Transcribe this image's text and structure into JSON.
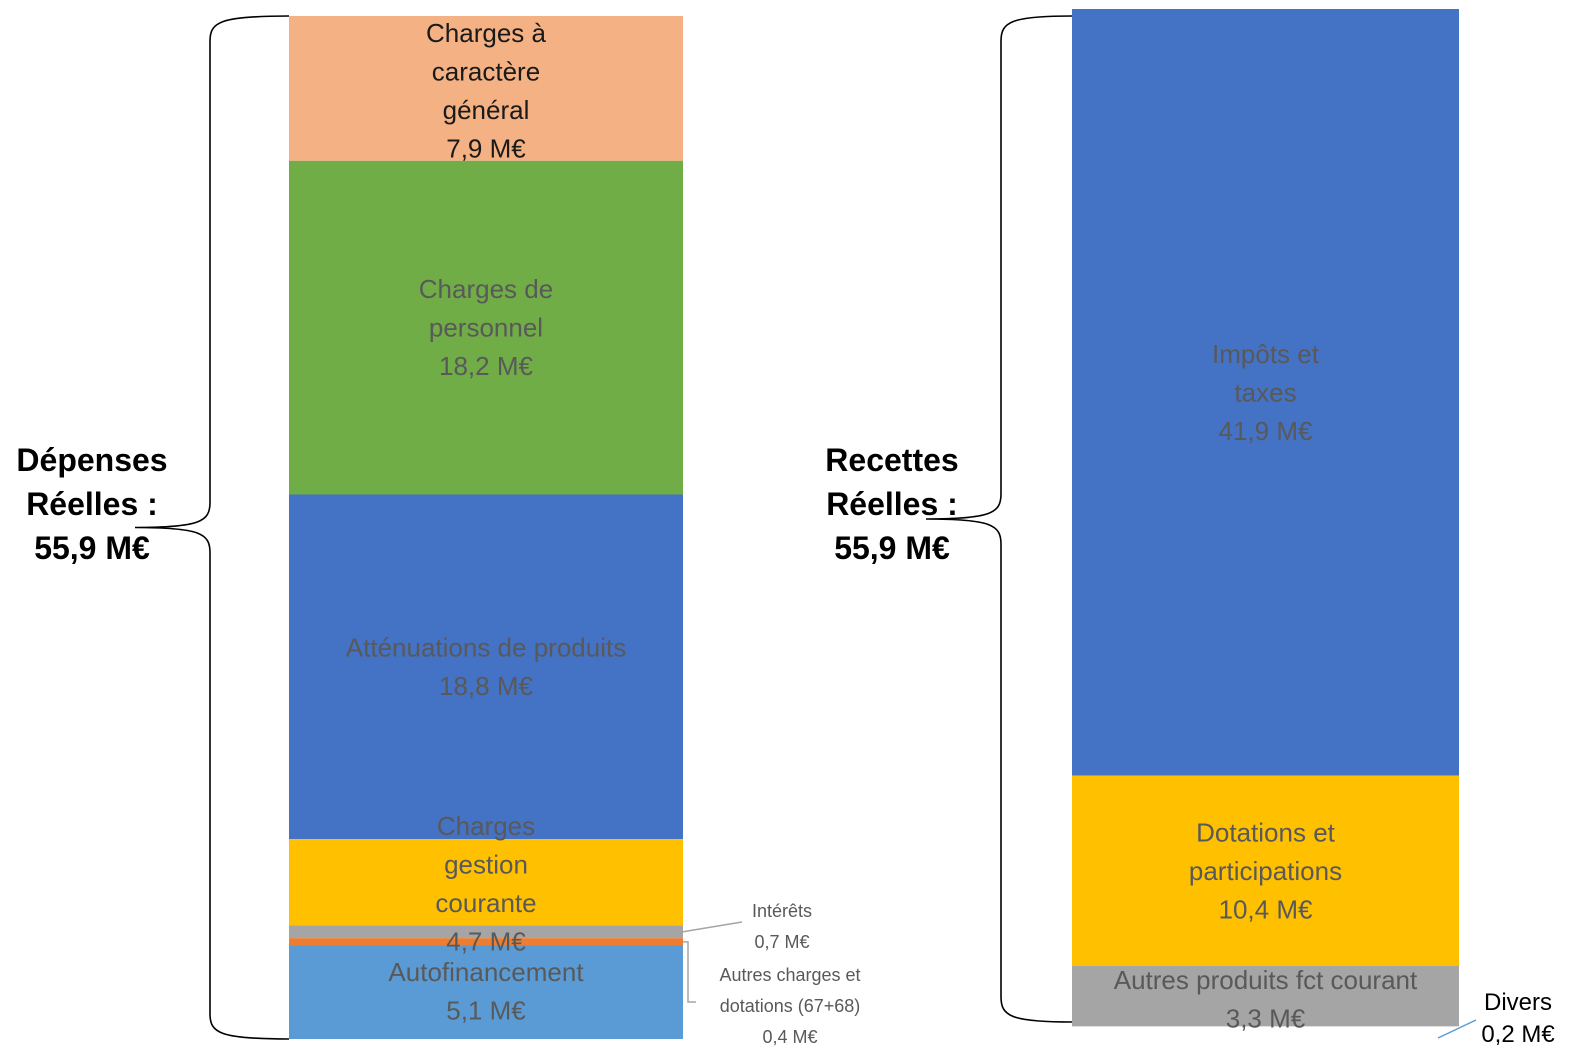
{
  "chart_data": {
    "type": "stacked-bar",
    "unit": "M€",
    "bars": [
      {
        "title": [
          "Dépenses",
          "Réelles :",
          "55,9 M€"
        ],
        "segments": [
          {
            "label": [
              "Charges à",
              "caractère",
              "général"
            ],
            "value_label": "7,9 M€",
            "value": 7.9,
            "color": "#F4B183",
            "text_color": "#1a1a1a"
          },
          {
            "label": [
              "Charges de",
              "personnel"
            ],
            "value_label": "18,2 M€",
            "value": 18.2,
            "color": "#70AD47",
            "text_color": "#595959"
          },
          {
            "label": [
              "Atténuations de produits"
            ],
            "value_label": "18,8 M€",
            "value": 18.8,
            "color": "#4472C4",
            "text_color": "#595959"
          },
          {
            "label": [
              "Charges",
              "gestion",
              "courante"
            ],
            "value_label": "4,7 M€",
            "value": 4.7,
            "color": "#FFC000",
            "text_color": "#595959"
          },
          {
            "label": [
              "Intérêts"
            ],
            "value_label": "0,7 M€",
            "value": 0.7,
            "color": "#A5A5A5",
            "text_color": "#595959"
          },
          {
            "label": [
              "Autres charges et",
              "dotations (67+68)"
            ],
            "value_label": "0,4 M€",
            "value": 0.4,
            "color": "#ED7D31",
            "text_color": "#595959"
          },
          {
            "label": [
              "Autofinancement"
            ],
            "value_label": "5,1 M€",
            "value": 5.1,
            "color": "#5B9BD5",
            "text_color": "#595959"
          }
        ]
      },
      {
        "title": [
          "Recettes",
          "Réelles :",
          "55,9 M€"
        ],
        "segments": [
          {
            "label": [
              "Impôts et",
              "taxes"
            ],
            "value_label": "41,9 M€",
            "value": 41.9,
            "color": "#4472C4",
            "text_color": "#595959"
          },
          {
            "label": [
              "Dotations et",
              "participations"
            ],
            "value_label": "10,4 M€",
            "value": 10.4,
            "color": "#FFC000",
            "text_color": "#595959"
          },
          {
            "label": [
              "Autres produits fct courant"
            ],
            "value_label": "3,3 M€",
            "value": 3.3,
            "color": "#A5A5A5",
            "text_color": "#595959"
          },
          {
            "label": [
              "Divers"
            ],
            "value_label": "0,2 M€",
            "value": 0.2,
            "color": "#ffffff",
            "text_color": "#000000"
          }
        ]
      }
    ]
  }
}
